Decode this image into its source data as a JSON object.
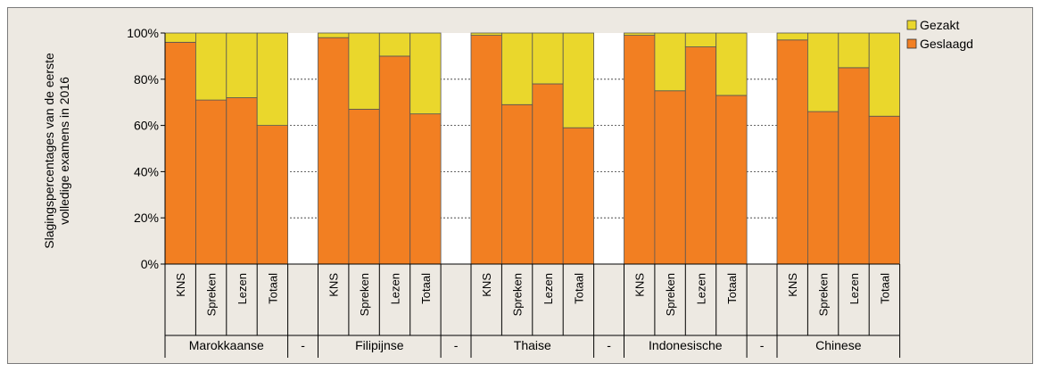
{
  "chart_data": {
    "type": "bar",
    "stacked": true,
    "percent": true,
    "ylabel": "Slagingspercentages van de eerste volledige examens in 2016",
    "ylabel_lines": [
      "Slagingspercentages van de eerste",
      "volledige examens in 2016"
    ],
    "ylim": [
      0,
      100
    ],
    "yticks": [
      "0%",
      "20%",
      "40%",
      "60%",
      "80%",
      "100%"
    ],
    "grid": "dashed horizontal",
    "legend_position": "top-right",
    "colors": {
      "Geslaagd": "#f27f22",
      "Gezakt": "#ead72c"
    },
    "groups": [
      {
        "name": "Marokkaanse",
        "categories": [
          "KNS",
          "Spreken",
          "Lezen",
          "Totaal"
        ],
        "geslaagd": [
          96,
          71,
          72,
          60
        ],
        "gezakt": [
          4,
          29,
          28,
          40
        ]
      },
      {
        "name": "-",
        "categories": [],
        "geslaagd": [],
        "gezakt": []
      },
      {
        "name": "Filipijnse",
        "categories": [
          "KNS",
          "Spreken",
          "Lezen",
          "Totaal"
        ],
        "geslaagd": [
          98,
          67,
          90,
          65
        ],
        "gezakt": [
          2,
          33,
          10,
          35
        ]
      },
      {
        "name": "-",
        "categories": [],
        "geslaagd": [],
        "gezakt": []
      },
      {
        "name": "Thaise",
        "categories": [
          "KNS",
          "Spreken",
          "Lezen",
          "Totaal"
        ],
        "geslaagd": [
          99,
          69,
          78,
          59
        ],
        "gezakt": [
          1,
          31,
          22,
          41
        ]
      },
      {
        "name": "-",
        "categories": [],
        "geslaagd": [],
        "gezakt": []
      },
      {
        "name": "Indonesische",
        "categories": [
          "KNS",
          "Spreken",
          "Lezen",
          "Totaal"
        ],
        "geslaagd": [
          99,
          75,
          94,
          73
        ],
        "gezakt": [
          1,
          25,
          6,
          27
        ]
      },
      {
        "name": "-",
        "categories": [],
        "geslaagd": [],
        "gezakt": []
      },
      {
        "name": "Chinese",
        "categories": [
          "KNS",
          "Spreken",
          "Lezen",
          "Totaal"
        ],
        "geslaagd": [
          97,
          66,
          85,
          64
        ],
        "gezakt": [
          3,
          34,
          15,
          36
        ]
      }
    ],
    "legend": [
      {
        "key": "Gezakt",
        "label": "Gezakt"
      },
      {
        "key": "Geslaagd",
        "label": "Geslaagd"
      }
    ]
  }
}
